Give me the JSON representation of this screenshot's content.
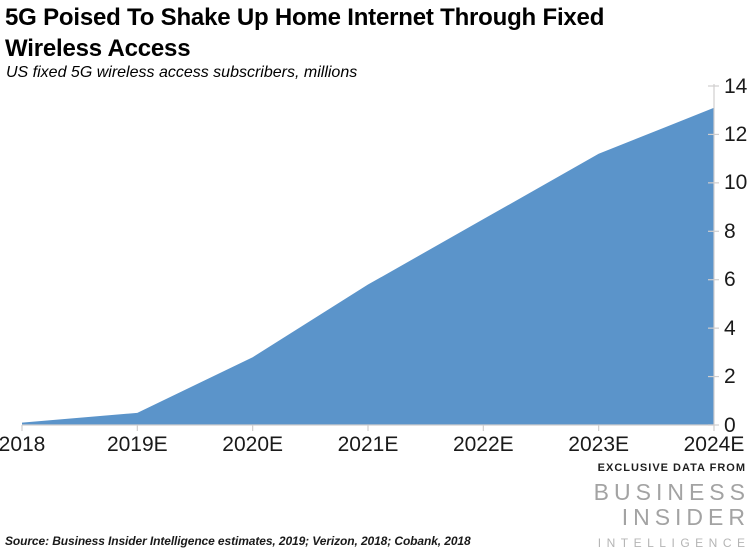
{
  "header": {
    "title_line1": "5G Poised To Shake Up Home Internet Through Fixed",
    "title_line2": "Wireless Access",
    "subtitle": "US fixed 5G wireless access subscribers, millions"
  },
  "chart_data": {
    "type": "area",
    "title": "5G Poised To Shake Up Home Internet Through Fixed Wireless Access",
    "subtitle": "US fixed 5G wireless access subscribers, millions",
    "categories": [
      "2018",
      "2019E",
      "2020E",
      "2021E",
      "2022E",
      "2023E",
      "2024E"
    ],
    "values": [
      0.1,
      0.5,
      2.8,
      5.8,
      8.5,
      11.2,
      13.1
    ],
    "xlabel": "",
    "ylabel": "",
    "ylim": [
      0,
      14
    ],
    "yticks": [
      0,
      2,
      4,
      6,
      8,
      10,
      12,
      14
    ],
    "y_axis_side": "right",
    "grid": false,
    "legend": "none",
    "area_color": "#5b94ca",
    "axis_color": "#d0cece",
    "tick_label_color": "#1a1a1a"
  },
  "footer": {
    "source": "Source: Business Insider Intelligence estimates, 2019; Verizon, 2018; Cobank, 2018",
    "logo": {
      "tagline": "EXCLUSIVE DATA FROM",
      "line1": "BUSINESS",
      "line2": "INSIDER",
      "line3": "INTELLIGENCE",
      "colors": {
        "tagline": "#1f1f1f",
        "main": "#a3a3a3",
        "intelligence": "#b5b5b5"
      }
    }
  }
}
